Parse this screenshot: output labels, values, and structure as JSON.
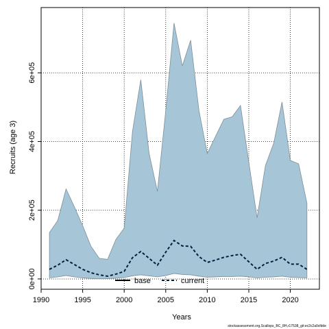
{
  "chart_data": {
    "type": "area",
    "xlabel": "Years",
    "ylabel": "Recruits (age 3)",
    "xlim": [
      1990,
      2023.5
    ],
    "ylim": [
      -30000,
      790000
    ],
    "x_ticks": [
      1990,
      1995,
      2000,
      2005,
      2010,
      2015,
      2020
    ],
    "y_ticks": [
      0,
      200000,
      400000,
      600000
    ],
    "y_tick_labels": [
      "0e+00",
      "2e+05",
      "4e+05",
      "6e+05"
    ],
    "grid": true,
    "legend_position": "bottom-center",
    "band": {
      "color": "#a6c5d6",
      "years": [
        1991,
        1992,
        1993,
        1994,
        1995,
        1996,
        1997,
        1998,
        1999,
        2000,
        2001,
        2002,
        2003,
        2004,
        2005,
        2006,
        2007,
        2008,
        2009,
        2010,
        2011,
        2012,
        2013,
        2014,
        2015,
        2016,
        2017,
        2018,
        2019,
        2020,
        2021,
        2022
      ],
      "upper": [
        135000,
        170000,
        262000,
        210000,
        155000,
        95000,
        60000,
        57000,
        115000,
        148000,
        430000,
        580000,
        365000,
        255000,
        490000,
        745000,
        620000,
        695000,
        490000,
        365000,
        415000,
        465000,
        472000,
        505000,
        340000,
        178000,
        330000,
        395000,
        515000,
        345000,
        335000,
        220000
      ],
      "lower": [
        3000,
        6000,
        10000,
        6000,
        3000,
        1500,
        800,
        800,
        2000,
        4000,
        9000,
        12000,
        9000,
        6000,
        10000,
        16000,
        13000,
        12000,
        8000,
        5000,
        6000,
        7000,
        7000,
        8000,
        6000,
        3000,
        5000,
        6000,
        8000,
        5000,
        4000,
        3000
      ]
    },
    "series": [
      {
        "name": "base",
        "style": "solid",
        "color": "#000000",
        "values": []
      },
      {
        "name": "current",
        "style": "dashed",
        "color": "#001f3f",
        "x": [
          1991,
          1992,
          1993,
          1994,
          1995,
          1996,
          1997,
          1998,
          1999,
          2000,
          2001,
          2002,
          2003,
          2004,
          2005,
          2006,
          2007,
          2008,
          2009,
          2010,
          2011,
          2012,
          2013,
          2014,
          2015,
          2016,
          2017,
          2018,
          2019,
          2020,
          2021,
          2022
        ],
        "values": [
          28000,
          40000,
          56000,
          42000,
          28000,
          18000,
          12000,
          8000,
          14000,
          22000,
          62000,
          80000,
          60000,
          40000,
          78000,
          112000,
          96000,
          95000,
          65000,
          48000,
          55000,
          63000,
          68000,
          72000,
          50000,
          28000,
          45000,
          52000,
          63000,
          43000,
          43000,
          28000
        ]
      }
    ]
  },
  "footer": "stockassessment.org,Scallops_BC_8H,r17538_git:ec2c2a0cfdde"
}
